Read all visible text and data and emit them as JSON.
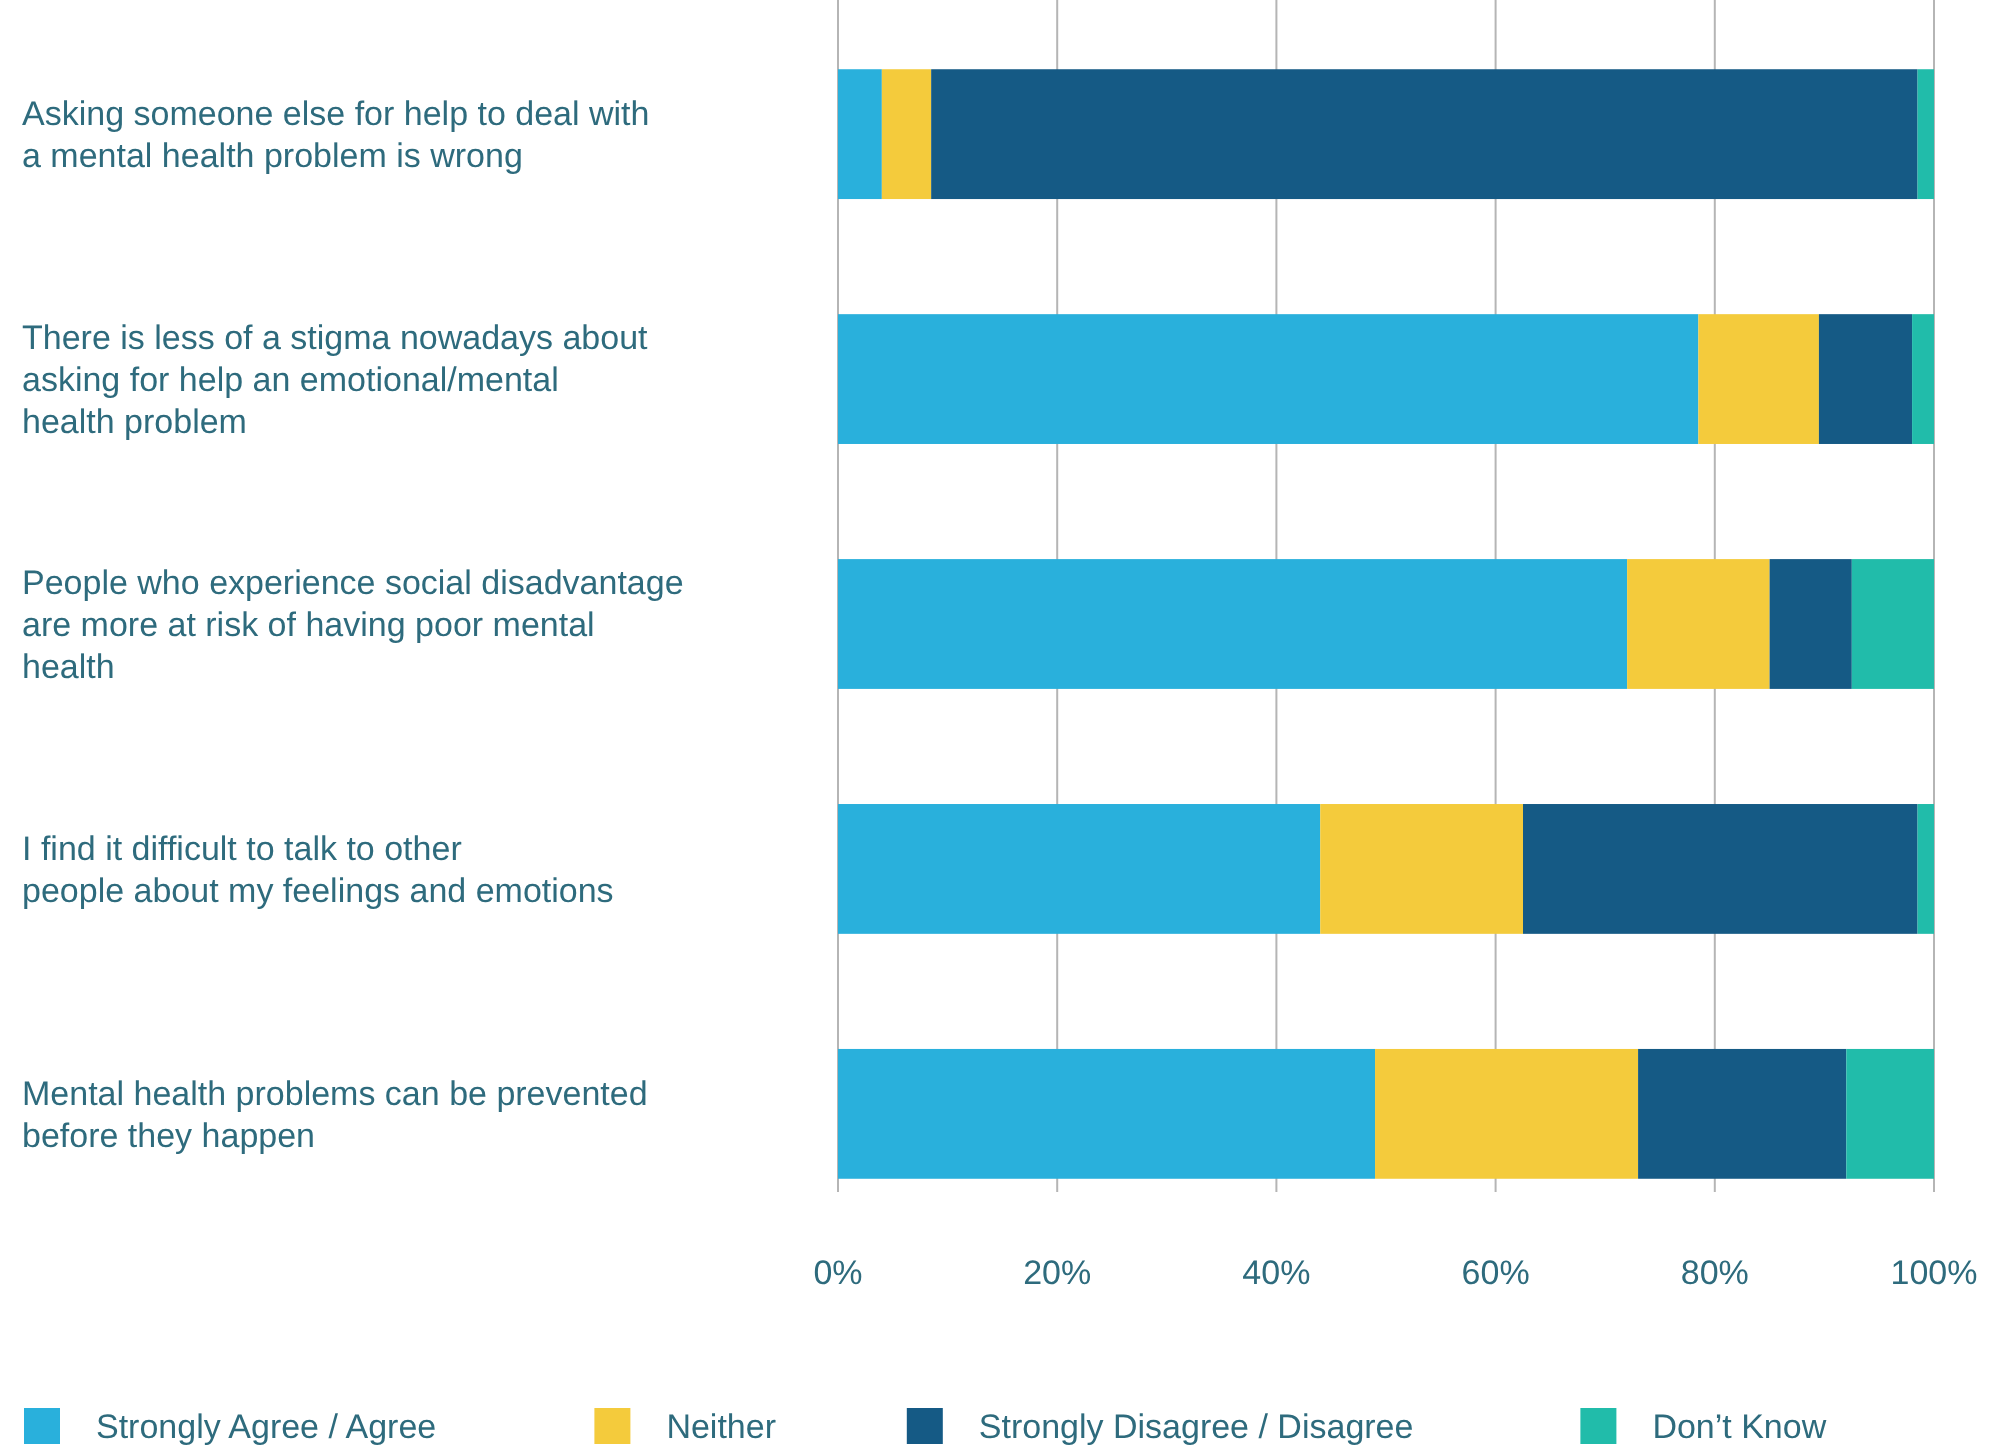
{
  "chart_data": {
    "type": "bar",
    "orientation": "horizontal",
    "stacked": true,
    "categories": [
      "Asking someone else for help to deal with a mental health problem is wrong",
      "There is less of a stigma nowadays about asking for help an emotional/mental health problem",
      "People who experience social disadvantage are more at risk of having poor mental health",
      "I find it difficult to talk to other people about my feelings and emotions",
      "Mental health problems can be prevented before they happen"
    ],
    "series": [
      {
        "name": "Strongly Agree / Agree",
        "color": "#29b0dc",
        "values": [
          4,
          78.5,
          72,
          44,
          49
        ]
      },
      {
        "name": "Neither",
        "color": "#f4cb3c",
        "values": [
          4.5,
          11,
          13,
          18.5,
          24
        ]
      },
      {
        "name": "Strongly Disagree / Disagree",
        "color": "#155a85",
        "values": [
          90,
          8.5,
          7.5,
          36,
          19
        ]
      },
      {
        "name": "Don’t Know",
        "color": "#21bcaa",
        "values": [
          1.5,
          2,
          7.5,
          1.5,
          8
        ]
      }
    ],
    "xlim": [
      0,
      100
    ],
    "xticks": [
      {
        "value": 0,
        "label": "0%"
      },
      {
        "value": 20,
        "label": "20%"
      },
      {
        "value": 40,
        "label": "40%"
      },
      {
        "value": 60,
        "label": "60%"
      },
      {
        "value": 80,
        "label": "80%"
      },
      {
        "value": 100,
        "label": "100%"
      }
    ],
    "grid": "x",
    "legend": "bottom"
  }
}
